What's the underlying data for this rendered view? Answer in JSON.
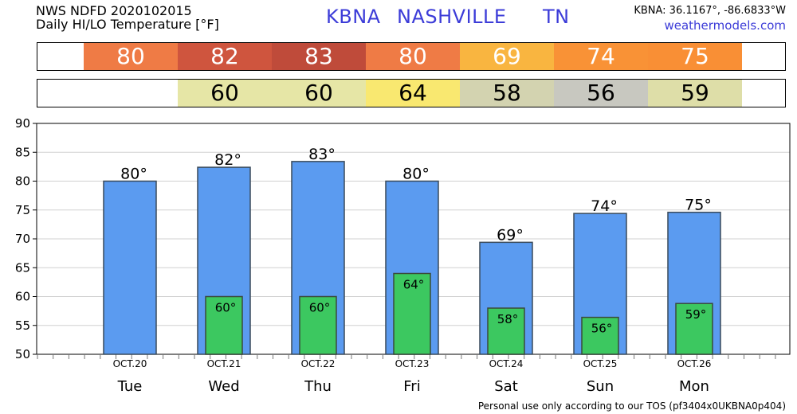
{
  "header": {
    "line1": "NWS NDFD 2020102015",
    "line2": "Daily HI/LO Temperature [°F]",
    "station_id": "KBNA",
    "station_name": "NASHVILLE",
    "state": "TN",
    "coords": "KBNA: 36.1167°, -86.6833°W",
    "site": "weathermodels.com"
  },
  "footer": "Personal use only according to our TOS (pf3404x0UKBNA0p404)",
  "colors": {
    "hi_bar": "#5b9bf0",
    "lo_bar": "#3cc860",
    "title_blue": "#3c3cd8"
  },
  "hi_strip": [
    {
      "value": "80",
      "color": "#ef7b45"
    },
    {
      "value": "82",
      "color": "#cf553e"
    },
    {
      "value": "83",
      "color": "#bf4b3a"
    },
    {
      "value": "80",
      "color": "#ef7b45"
    },
    {
      "value": "69",
      "color": "#f9b540"
    },
    {
      "value": "74",
      "color": "#f99236"
    },
    {
      "value": "75",
      "color": "#f98f35"
    }
  ],
  "lo_strip": [
    {
      "value": "",
      "color": "#ffffff"
    },
    {
      "value": "60",
      "color": "#e6e6a6"
    },
    {
      "value": "60",
      "color": "#e6e6a6"
    },
    {
      "value": "64",
      "color": "#f9e870"
    },
    {
      "value": "58",
      "color": "#d3d3b0"
    },
    {
      "value": "56",
      "color": "#c8c8c0"
    },
    {
      "value": "59",
      "color": "#dedea8"
    }
  ],
  "chart_data": {
    "type": "bar",
    "categories": [
      "Tue",
      "Wed",
      "Thu",
      "Fri",
      "Sat",
      "Sun",
      "Mon"
    ],
    "dates": [
      "OCT.20",
      "OCT.21",
      "OCT.22",
      "OCT.23",
      "OCT.24",
      "OCT.25",
      "OCT.26"
    ],
    "series": [
      {
        "name": "",
        "values": [
          80,
          82.4,
          83.4,
          80,
          69.4,
          74.4,
          74.6
        ],
        "labels": [
          "80°",
          "82°",
          "83°",
          "80°",
          "69°",
          "74°",
          "75°"
        ]
      },
      {
        "name": "",
        "values": [
          null,
          60,
          60,
          64,
          58,
          56.4,
          58.8
        ],
        "labels": [
          "",
          "60°",
          "60°",
          "64°",
          "58°",
          "56°",
          "59°"
        ]
      }
    ],
    "yticks": [
      50,
      55,
      60,
      65,
      70,
      75,
      80,
      85,
      90
    ],
    "ylim": [
      50,
      90
    ],
    "grid": true,
    "xlabel": "",
    "ylabel": ""
  }
}
